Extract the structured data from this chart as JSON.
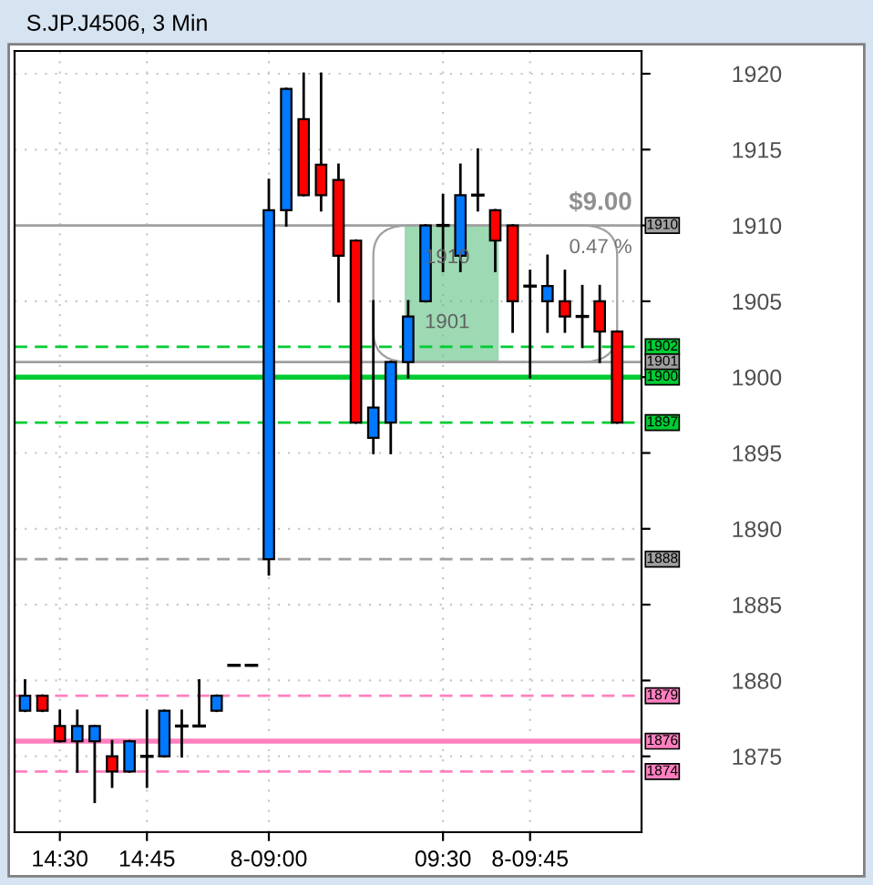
{
  "chart_data": {
    "type": "candlestick",
    "title": "S.JP.J4506, 3 Min",
    "categories": [
      null,
      null,
      "14:30",
      null,
      null,
      null,
      null,
      "14:45",
      null,
      null,
      null,
      null,
      null,
      null,
      "8-09:00",
      null,
      null,
      null,
      null,
      null,
      null,
      null,
      null,
      null,
      "09:30",
      null,
      null,
      null,
      null,
      "8-09:45",
      null,
      null,
      null,
      null,
      null
    ],
    "ohlc": [
      [
        1878,
        1880,
        1878,
        1879
      ],
      [
        1879,
        1879,
        1878,
        1878
      ],
      [
        1877,
        1878,
        1876,
        1876
      ],
      [
        1876,
        1878,
        1874,
        1877
      ],
      [
        1876,
        1877,
        1872,
        1877
      ],
      [
        1875,
        1876,
        1873,
        1874
      ],
      [
        1874,
        1876,
        1874,
        1876
      ],
      [
        1875,
        1878,
        1873,
        1875
      ],
      [
        1875,
        1878,
        1875,
        1878
      ],
      [
        1877,
        1878,
        1875,
        1877
      ],
      [
        1877,
        1880,
        1877,
        1877
      ],
      [
        1878,
        1879,
        1878,
        1879
      ],
      [
        1881,
        1881,
        1881,
        1881
      ],
      [
        1881,
        1881,
        1881,
        1881
      ],
      [
        1888,
        1913,
        1887,
        1911
      ],
      [
        1911,
        1919,
        1910,
        1919
      ],
      [
        1917,
        1920,
        1912,
        1912
      ],
      [
        1914,
        1920,
        1911,
        1912
      ],
      [
        1913,
        1914,
        1905,
        1908
      ],
      [
        1909,
        1909,
        1897,
        1897
      ],
      [
        1896,
        1905,
        1895,
        1898
      ],
      [
        1897,
        1901,
        1895,
        1901
      ],
      [
        1901,
        1905,
        1900,
        1904
      ],
      [
        1905,
        1910,
        1905,
        1910
      ],
      [
        1910,
        1912,
        1907,
        1910
      ],
      [
        1908,
        1914,
        1907,
        1912
      ],
      [
        1912,
        1915,
        1911,
        1912
      ],
      [
        1911,
        1911,
        1907,
        1909
      ],
      [
        1910,
        1910,
        1903,
        1905
      ],
      [
        1906,
        1907,
        1900,
        1906
      ],
      [
        1905,
        1908,
        1903,
        1906
      ],
      [
        1905,
        1907,
        1903,
        1904
      ],
      [
        1904,
        1906,
        1902,
        1904
      ],
      [
        1905,
        1906,
        1901,
        1903
      ],
      [
        1903,
        1903,
        1897,
        1897
      ]
    ],
    "colors": [
      "#0078ff",
      "#ff0000",
      "#ff0000",
      "#0078ff",
      "#0078ff",
      "#ff0000",
      "#0078ff",
      "#000000",
      "#0078ff",
      "#000000",
      "#000000",
      "#0078ff",
      "#000000",
      "#000000",
      "#0078ff",
      "#0078ff",
      "#ff0000",
      "#ff0000",
      "#ff0000",
      "#ff0000",
      "#0078ff",
      "#0078ff",
      "#0078ff",
      "#0078ff",
      "#000000",
      "#0078ff",
      "#000000",
      "#ff0000",
      "#ff0000",
      "#000000",
      "#0078ff",
      "#ff0000",
      "#000000",
      "#ff0000",
      "#ff0000"
    ],
    "ylim": [
      1870,
      1921.5
    ],
    "yticks": [
      1875,
      1880,
      1885,
      1890,
      1895,
      1900,
      1905,
      1910,
      1915,
      1920
    ],
    "grid": true,
    "ref_lines": [
      {
        "axis": "y",
        "value": 1910,
        "label": "1910",
        "color": "#a0a0a0",
        "line_style": "solid"
      },
      {
        "axis": "y",
        "value": 1902,
        "label": "1902",
        "color": "#00cc33",
        "line_style": "dashed"
      },
      {
        "axis": "y",
        "value": 1901,
        "label": "1901",
        "color": "#a0a0a0",
        "line_style": "solid"
      },
      {
        "axis": "y",
        "value": 1900,
        "label": "1900",
        "color": "#00cc33",
        "line_style": "solid"
      },
      {
        "axis": "y",
        "value": 1897,
        "label": "1897",
        "color": "#00cc33",
        "line_style": "dashed"
      },
      {
        "axis": "y",
        "value": 1888,
        "label": "1888",
        "color": "#a0a0a0",
        "line_style": "dashed"
      },
      {
        "axis": "y",
        "value": 1879,
        "label": "1879",
        "color": "#ff80c0",
        "line_style": "dashed"
      },
      {
        "axis": "y",
        "value": 1876,
        "label": "1876",
        "color": "#ff80c0",
        "line_style": "solid"
      },
      {
        "axis": "y",
        "value": 1874,
        "label": "1874",
        "color": "#ff80c0",
        "line_style": "dashed"
      }
    ],
    "annotations": [
      "$9.00",
      "0.47 %",
      "1910",
      "1901"
    ]
  }
}
